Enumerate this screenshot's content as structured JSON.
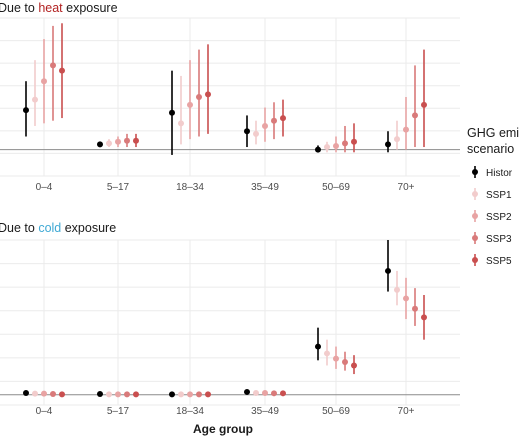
{
  "chart_data": {
    "type": "scatter",
    "x_label": "Age group",
    "categories": [
      "0–4",
      "5–17",
      "18–34",
      "35–49",
      "50–69",
      "70+"
    ],
    "legend": {
      "title_line1": "GHG emi",
      "title_line2": "scenario",
      "placement": "right"
    },
    "series": [
      {
        "name": "Histor",
        "color": "#000000"
      },
      {
        "name": "SSP1",
        "color": "#f2cccc"
      },
      {
        "name": "SSP2",
        "color": "#e8a3a3"
      },
      {
        "name": "SSP3",
        "color": "#d97a7a"
      },
      {
        "name": "SSP5",
        "color": "#c94f4f"
      }
    ],
    "panels": [
      {
        "title_prefix": "Due to ",
        "title_highlight": "heat",
        "title_suffix": " exposure",
        "highlight_color": "#b22222",
        "ylim": [
          -0.5,
          2.5
        ],
        "points": [
          [
            [
              0.75,
              0.25,
              1.3
            ],
            [
              0.95,
              0.45,
              1.7
            ],
            [
              1.3,
              0.5,
              2.1
            ],
            [
              1.6,
              0.55,
              2.35
            ],
            [
              1.5,
              0.6,
              2.4
            ]
          ],
          [
            [
              0.1,
              0.05,
              0.15
            ],
            [
              0.12,
              0.05,
              0.2
            ],
            [
              0.15,
              0.05,
              0.25
            ],
            [
              0.17,
              0.05,
              0.3
            ],
            [
              0.17,
              0.05,
              0.3
            ]
          ],
          [
            [
              0.7,
              -0.1,
              1.5
            ],
            [
              0.5,
              0.1,
              1.4
            ],
            [
              0.85,
              0.2,
              1.7
            ],
            [
              1.0,
              0.25,
              1.9
            ],
            [
              1.05,
              0.3,
              2.0
            ]
          ],
          [
            [
              0.35,
              0.05,
              0.65
            ],
            [
              0.3,
              0.1,
              0.55
            ],
            [
              0.45,
              0.15,
              0.8
            ],
            [
              0.55,
              0.2,
              0.9
            ],
            [
              0.6,
              0.25,
              0.95
            ]
          ],
          [
            [
              0.0,
              -0.05,
              0.08
            ],
            [
              0.05,
              -0.05,
              0.15
            ],
            [
              0.07,
              -0.05,
              0.25
            ],
            [
              0.12,
              -0.05,
              0.45
            ],
            [
              0.15,
              -0.05,
              0.5
            ]
          ],
          [
            [
              0.1,
              -0.05,
              0.35
            ],
            [
              0.2,
              0.0,
              0.55
            ],
            [
              0.38,
              0.0,
              1.0
            ],
            [
              0.65,
              0.05,
              1.6
            ],
            [
              0.85,
              0.05,
              1.9
            ]
          ]
        ]
      },
      {
        "title_prefix": "Due to ",
        "title_highlight": "cold",
        "title_suffix": " exposure",
        "highlight_color": "#3fa9d4",
        "ylim": [
          -0.3,
          4.5
        ],
        "points": [
          [
            [
              0.05,
              0.0,
              0.1
            ],
            [
              0.03,
              0.0,
              0.07
            ],
            [
              0.03,
              0.0,
              0.07
            ],
            [
              0.02,
              0.0,
              0.06
            ],
            [
              0.01,
              0.0,
              0.05
            ]
          ],
          [
            [
              0.02,
              0.0,
              0.05
            ],
            [
              0.01,
              0.0,
              0.04
            ],
            [
              0.01,
              0.0,
              0.03
            ],
            [
              0.01,
              0.0,
              0.03
            ],
            [
              0.01,
              0.0,
              0.03
            ]
          ],
          [
            [
              0.01,
              0.0,
              0.04
            ],
            [
              0.01,
              0.0,
              0.03
            ],
            [
              0.01,
              0.0,
              0.03
            ],
            [
              0.01,
              0.0,
              0.03
            ],
            [
              0.01,
              0.0,
              0.03
            ]
          ],
          [
            [
              0.08,
              0.04,
              0.12
            ],
            [
              0.05,
              0.02,
              0.09
            ],
            [
              0.05,
              0.02,
              0.09
            ],
            [
              0.04,
              0.01,
              0.08
            ],
            [
              0.04,
              0.01,
              0.08
            ]
          ],
          [
            [
              1.4,
              1.0,
              1.95
            ],
            [
              1.2,
              0.85,
              1.6
            ],
            [
              1.05,
              0.75,
              1.4
            ],
            [
              0.95,
              0.7,
              1.25
            ],
            [
              0.85,
              0.6,
              1.15
            ]
          ],
          [
            [
              3.6,
              3.0,
              4.5
            ],
            [
              3.05,
              2.6,
              3.6
            ],
            [
              2.8,
              2.2,
              3.4
            ],
            [
              2.5,
              2.0,
              3.1
            ],
            [
              2.25,
              1.6,
              2.9
            ]
          ]
        ]
      }
    ]
  }
}
